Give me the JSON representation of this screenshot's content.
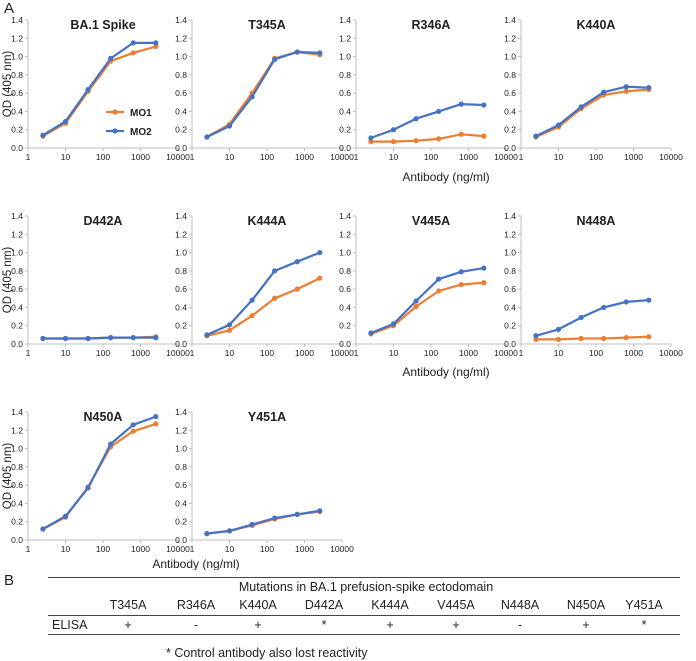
{
  "figure": {
    "panel_a": "A",
    "panel_b": "B"
  },
  "colors": {
    "MO1": "#ED7D31",
    "MO2": "#4472C4",
    "axis": "#bfbfbf",
    "text": "#222222"
  },
  "legend_items": [
    "MO1",
    "MO2"
  ],
  "ylabel": "OD (405 nm)",
  "xlabel": "Antibody (ng/ml)",
  "x_ticks": [
    "1",
    "10",
    "100",
    "1000",
    "10000"
  ],
  "y_ticks": [
    "0.0",
    "0.2",
    "0.4",
    "0.6",
    "0.8",
    "1.0",
    "1.2",
    "1.4"
  ],
  "chart_data": [
    {
      "type": "line",
      "title": "BA.1 Spike",
      "x": [
        2.5,
        10,
        40,
        160,
        640,
        2560
      ],
      "ylim": [
        0,
        1.4
      ],
      "xlim": [
        1,
        10000
      ],
      "xscale": "log",
      "series": [
        {
          "name": "MO1",
          "values": [
            0.13,
            0.27,
            0.62,
            0.95,
            1.04,
            1.11
          ]
        },
        {
          "name": "MO2",
          "values": [
            0.14,
            0.29,
            0.64,
            0.98,
            1.15,
            1.15
          ]
        }
      ]
    },
    {
      "type": "line",
      "title": "T345A",
      "x": [
        2.5,
        10,
        40,
        160,
        640,
        2560
      ],
      "ylim": [
        0,
        1.4
      ],
      "xlim": [
        1,
        10000
      ],
      "xscale": "log",
      "series": [
        {
          "name": "MO1",
          "values": [
            0.12,
            0.26,
            0.6,
            0.98,
            1.05,
            1.02
          ]
        },
        {
          "name": "MO2",
          "values": [
            0.12,
            0.24,
            0.56,
            0.97,
            1.05,
            1.04
          ]
        }
      ]
    },
    {
      "type": "line",
      "title": "R346A",
      "x": [
        2.5,
        10,
        40,
        160,
        640,
        2560
      ],
      "ylim": [
        0,
        1.4
      ],
      "xlim": [
        1,
        10000
      ],
      "xscale": "log",
      "series": [
        {
          "name": "MO1",
          "values": [
            0.07,
            0.07,
            0.08,
            0.1,
            0.15,
            0.13
          ]
        },
        {
          "name": "MO2",
          "values": [
            0.11,
            0.2,
            0.32,
            0.4,
            0.48,
            0.47
          ]
        }
      ]
    },
    {
      "type": "line",
      "title": "K440A",
      "x": [
        2.5,
        10,
        40,
        160,
        640,
        2560
      ],
      "ylim": [
        0,
        1.4
      ],
      "xlim": [
        1,
        10000
      ],
      "xscale": "log",
      "series": [
        {
          "name": "MO1",
          "values": [
            0.12,
            0.23,
            0.43,
            0.58,
            0.62,
            0.64
          ]
        },
        {
          "name": "MO2",
          "values": [
            0.13,
            0.25,
            0.45,
            0.61,
            0.67,
            0.66
          ]
        }
      ]
    },
    {
      "type": "line",
      "title": "D442A",
      "x": [
        2.5,
        10,
        40,
        160,
        640,
        2560
      ],
      "ylim": [
        0,
        1.4
      ],
      "xlim": [
        1,
        10000
      ],
      "xscale": "log",
      "series": [
        {
          "name": "MO1",
          "values": [
            0.06,
            0.06,
            0.06,
            0.07,
            0.07,
            0.08
          ]
        },
        {
          "name": "MO2",
          "values": [
            0.06,
            0.06,
            0.06,
            0.07,
            0.07,
            0.07
          ]
        }
      ]
    },
    {
      "type": "line",
      "title": "K444A",
      "x": [
        2.5,
        10,
        40,
        160,
        640,
        2560
      ],
      "ylim": [
        0,
        1.4
      ],
      "xlim": [
        1,
        10000
      ],
      "xscale": "log",
      "series": [
        {
          "name": "MO1",
          "values": [
            0.09,
            0.15,
            0.31,
            0.5,
            0.6,
            0.72
          ]
        },
        {
          "name": "MO2",
          "values": [
            0.1,
            0.21,
            0.48,
            0.8,
            0.9,
            1.0
          ]
        }
      ]
    },
    {
      "type": "line",
      "title": "V445A",
      "x": [
        2.5,
        10,
        40,
        160,
        640,
        2560
      ],
      "ylim": [
        0,
        1.4
      ],
      "xlim": [
        1,
        10000
      ],
      "xscale": "log",
      "series": [
        {
          "name": "MO1",
          "values": [
            0.11,
            0.2,
            0.41,
            0.58,
            0.65,
            0.67
          ]
        },
        {
          "name": "MO2",
          "values": [
            0.12,
            0.22,
            0.47,
            0.71,
            0.79,
            0.83
          ]
        }
      ]
    },
    {
      "type": "line",
      "title": "N448A",
      "x": [
        2.5,
        10,
        40,
        160,
        640,
        2560
      ],
      "ylim": [
        0,
        1.4
      ],
      "xlim": [
        1,
        10000
      ],
      "xscale": "log",
      "series": [
        {
          "name": "MO1",
          "values": [
            0.05,
            0.05,
            0.06,
            0.06,
            0.07,
            0.08
          ]
        },
        {
          "name": "MO2",
          "values": [
            0.09,
            0.16,
            0.29,
            0.4,
            0.46,
            0.48
          ]
        }
      ]
    },
    {
      "type": "line",
      "title": "N450A",
      "x": [
        2.5,
        10,
        40,
        160,
        640,
        2560
      ],
      "ylim": [
        0,
        1.4
      ],
      "xlim": [
        1,
        10000
      ],
      "xscale": "log",
      "series": [
        {
          "name": "MO1",
          "values": [
            0.12,
            0.25,
            0.58,
            1.02,
            1.19,
            1.27
          ]
        },
        {
          "name": "MO2",
          "values": [
            0.12,
            0.26,
            0.57,
            1.05,
            1.26,
            1.35
          ]
        }
      ]
    },
    {
      "type": "line",
      "title": "Y451A",
      "x": [
        2.5,
        10,
        40,
        160,
        640,
        2560
      ],
      "ylim": [
        0,
        1.4
      ],
      "xlim": [
        1,
        10000
      ],
      "xscale": "log",
      "series": [
        {
          "name": "MO1",
          "values": [
            0.07,
            0.1,
            0.16,
            0.23,
            0.28,
            0.31
          ]
        },
        {
          "name": "MO2",
          "values": [
            0.07,
            0.1,
            0.17,
            0.24,
            0.28,
            0.32
          ]
        }
      ]
    }
  ],
  "table": {
    "title": "Mutations in BA.1 prefusion-spike ectodomain",
    "row_label": "ELISA",
    "mutations": [
      "T345A",
      "R346A",
      "K440A",
      "D442A",
      "K444A",
      "V445A",
      "N448A",
      "N450A",
      "Y451A"
    ],
    "elisa": [
      "+",
      "-",
      "+",
      "*",
      "+",
      "+",
      "-",
      "+",
      "*"
    ],
    "footnote": "* Control antibody also lost reactivity"
  }
}
